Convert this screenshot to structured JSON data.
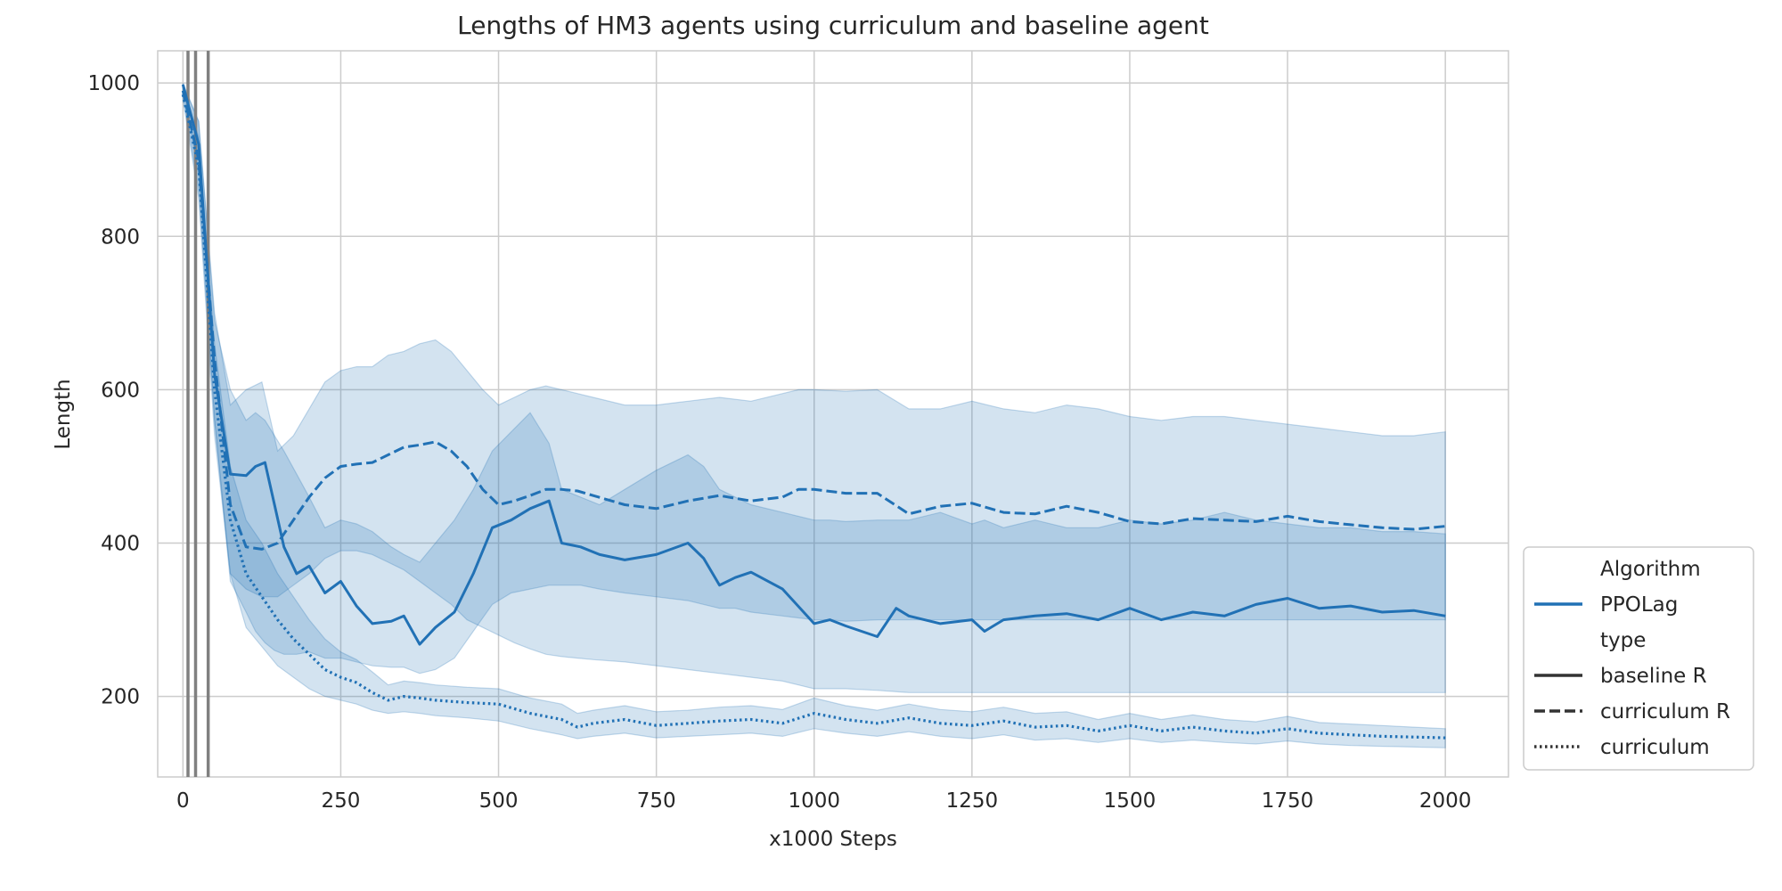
{
  "chart_data": {
    "type": "line",
    "title": "Lengths of HM3 agents using curriculum and baseline agent",
    "xlabel": "x1000 Steps",
    "ylabel": "Length",
    "xlim": [
      -40,
      2100
    ],
    "ylim": [
      95,
      1042
    ],
    "xticks": [
      0,
      250,
      500,
      750,
      1000,
      1250,
      1500,
      1750,
      2000
    ],
    "yticks": [
      200,
      400,
      600,
      800,
      1000
    ],
    "grid": true,
    "legend": {
      "position": "outside right, bottom",
      "entries": [
        {
          "label": "Algorithm",
          "kind": "header"
        },
        {
          "label": "PPOLag",
          "kind": "color",
          "color": "#2171b5"
        },
        {
          "label": "type",
          "kind": "header"
        },
        {
          "label": "baseline R",
          "kind": "style",
          "dash": "solid"
        },
        {
          "label": "curriculum R",
          "kind": "style",
          "dash": "dashed"
        },
        {
          "label": "curriculum",
          "kind": "style",
          "dash": "dotted"
        }
      ]
    },
    "vlines": [
      8,
      20,
      40
    ],
    "colors": {
      "series": "#2171b5",
      "band": "#2171b5",
      "vline": "#808080",
      "legend_style": "#333333"
    },
    "series": [
      {
        "name": "baseline R",
        "dash": "solid",
        "x": [
          0,
          25,
          50,
          75,
          100,
          115,
          130,
          145,
          160,
          180,
          200,
          225,
          250,
          275,
          300,
          330,
          350,
          375,
          400,
          430,
          460,
          490,
          520,
          550,
          580,
          600,
          630,
          660,
          700,
          750,
          800,
          825,
          850,
          875,
          900,
          950,
          1000,
          1025,
          1050,
          1100,
          1130,
          1150,
          1200,
          1250,
          1270,
          1300,
          1350,
          1400,
          1450,
          1500,
          1550,
          1600,
          1650,
          1700,
          1750,
          1800,
          1850,
          1900,
          1950,
          2000
        ],
        "y": [
          998,
          920,
          620,
          490,
          488,
          500,
          505,
          450,
          395,
          360,
          370,
          335,
          350,
          318,
          295,
          298,
          305,
          268,
          290,
          310,
          360,
          420,
          430,
          445,
          455,
          400,
          395,
          385,
          378,
          385,
          400,
          380,
          345,
          355,
          362,
          340,
          295,
          300,
          292,
          278,
          315,
          305,
          295,
          300,
          285,
          300,
          305,
          308,
          300,
          315,
          300,
          310,
          305,
          320,
          328,
          315,
          318,
          310,
          312,
          305
        ],
        "band_low": [
          996,
          880,
          560,
          350,
          310,
          285,
          270,
          260,
          255,
          255,
          258,
          250,
          250,
          245,
          240,
          238,
          238,
          230,
          235,
          250,
          285,
          320,
          335,
          340,
          345,
          345,
          345,
          340,
          335,
          330,
          325,
          320,
          315,
          315,
          310,
          305,
          300,
          300,
          298,
          300,
          300,
          300,
          300,
          300,
          300,
          300,
          300,
          300,
          300,
          300,
          300,
          300,
          300,
          300,
          300,
          300,
          300,
          300,
          300,
          300
        ],
        "band_high": [
          1000,
          950,
          690,
          600,
          560,
          570,
          560,
          540,
          520,
          490,
          460,
          420,
          430,
          425,
          415,
          395,
          385,
          375,
          400,
          430,
          470,
          520,
          545,
          570,
          530,
          470,
          460,
          450,
          470,
          495,
          515,
          500,
          470,
          460,
          450,
          440,
          430,
          430,
          428,
          430,
          430,
          430,
          440,
          425,
          430,
          420,
          430,
          420,
          420,
          430,
          425,
          430,
          440,
          430,
          425,
          420,
          420,
          415,
          415,
          412
        ]
      },
      {
        "name": "curriculum R",
        "dash": "dashed",
        "x": [
          0,
          25,
          50,
          75,
          100,
          125,
          150,
          175,
          200,
          225,
          250,
          275,
          300,
          325,
          350,
          375,
          400,
          425,
          450,
          475,
          500,
          525,
          550,
          575,
          600,
          625,
          650,
          700,
          750,
          800,
          850,
          900,
          950,
          975,
          1000,
          1050,
          1100,
          1150,
          1200,
          1250,
          1300,
          1350,
          1400,
          1450,
          1500,
          1550,
          1600,
          1650,
          1700,
          1750,
          1800,
          1850,
          1900,
          1950,
          2000
        ],
        "y": [
          990,
          900,
          640,
          450,
          395,
          392,
          400,
          430,
          460,
          485,
          500,
          503,
          505,
          515,
          525,
          528,
          532,
          520,
          500,
          470,
          450,
          455,
          462,
          470,
          470,
          468,
          462,
          450,
          445,
          455,
          462,
          455,
          460,
          470,
          470,
          465,
          465,
          438,
          448,
          452,
          440,
          438,
          448,
          440,
          428,
          425,
          432,
          430,
          428,
          435,
          428,
          424,
          420,
          418,
          422
        ],
        "band_low": [
          985,
          860,
          560,
          360,
          340,
          330,
          330,
          345,
          360,
          380,
          390,
          390,
          385,
          375,
          365,
          350,
          335,
          320,
          300,
          290,
          280,
          270,
          262,
          255,
          252,
          250,
          248,
          245,
          240,
          235,
          230,
          225,
          220,
          215,
          210,
          210,
          208,
          205,
          205,
          205,
          205,
          205,
          205,
          205,
          205,
          205,
          205,
          205,
          205,
          205,
          205,
          205,
          205,
          205,
          205
        ],
        "band_high": [
          998,
          950,
          700,
          580,
          600,
          610,
          520,
          540,
          575,
          610,
          625,
          630,
          630,
          645,
          650,
          660,
          665,
          650,
          625,
          600,
          580,
          590,
          600,
          605,
          600,
          595,
          590,
          580,
          580,
          585,
          590,
          585,
          595,
          600,
          600,
          598,
          600,
          575,
          575,
          585,
          575,
          570,
          580,
          575,
          565,
          560,
          565,
          565,
          560,
          555,
          550,
          545,
          540,
          540,
          545
        ]
      },
      {
        "name": "curriculum",
        "dash": "dotted",
        "x": [
          0,
          25,
          50,
          75,
          100,
          125,
          150,
          175,
          200,
          225,
          250,
          275,
          300,
          325,
          350,
          375,
          400,
          450,
          500,
          550,
          600,
          625,
          650,
          700,
          750,
          800,
          850,
          900,
          950,
          1000,
          1050,
          1100,
          1150,
          1200,
          1250,
          1300,
          1350,
          1400,
          1450,
          1500,
          1550,
          1600,
          1650,
          1700,
          1750,
          1800,
          1850,
          1900,
          1950,
          2000
        ],
        "y": [
          985,
          890,
          600,
          430,
          360,
          330,
          300,
          275,
          255,
          235,
          225,
          218,
          205,
          195,
          200,
          198,
          195,
          192,
          190,
          178,
          170,
          160,
          165,
          170,
          162,
          165,
          168,
          170,
          165,
          178,
          170,
          165,
          172,
          165,
          162,
          168,
          160,
          162,
          155,
          162,
          155,
          160,
          155,
          152,
          158,
          152,
          150,
          148,
          147,
          146
        ],
        "band_low": [
          978,
          850,
          540,
          360,
          290,
          265,
          240,
          225,
          210,
          200,
          195,
          190,
          182,
          178,
          180,
          178,
          175,
          172,
          168,
          158,
          150,
          145,
          148,
          152,
          146,
          148,
          150,
          152,
          148,
          158,
          152,
          148,
          154,
          148,
          145,
          150,
          143,
          145,
          140,
          145,
          140,
          143,
          140,
          138,
          142,
          138,
          136,
          135,
          134,
          133
        ],
        "band_high": [
          995,
          930,
          660,
          500,
          430,
          400,
          360,
          330,
          300,
          275,
          258,
          248,
          232,
          215,
          220,
          218,
          215,
          212,
          210,
          198,
          190,
          178,
          182,
          188,
          180,
          182,
          186,
          188,
          183,
          198,
          188,
          182,
          190,
          183,
          180,
          186,
          178,
          180,
          170,
          178,
          170,
          176,
          170,
          167,
          174,
          166,
          164,
          162,
          160,
          158
        ]
      }
    ]
  }
}
